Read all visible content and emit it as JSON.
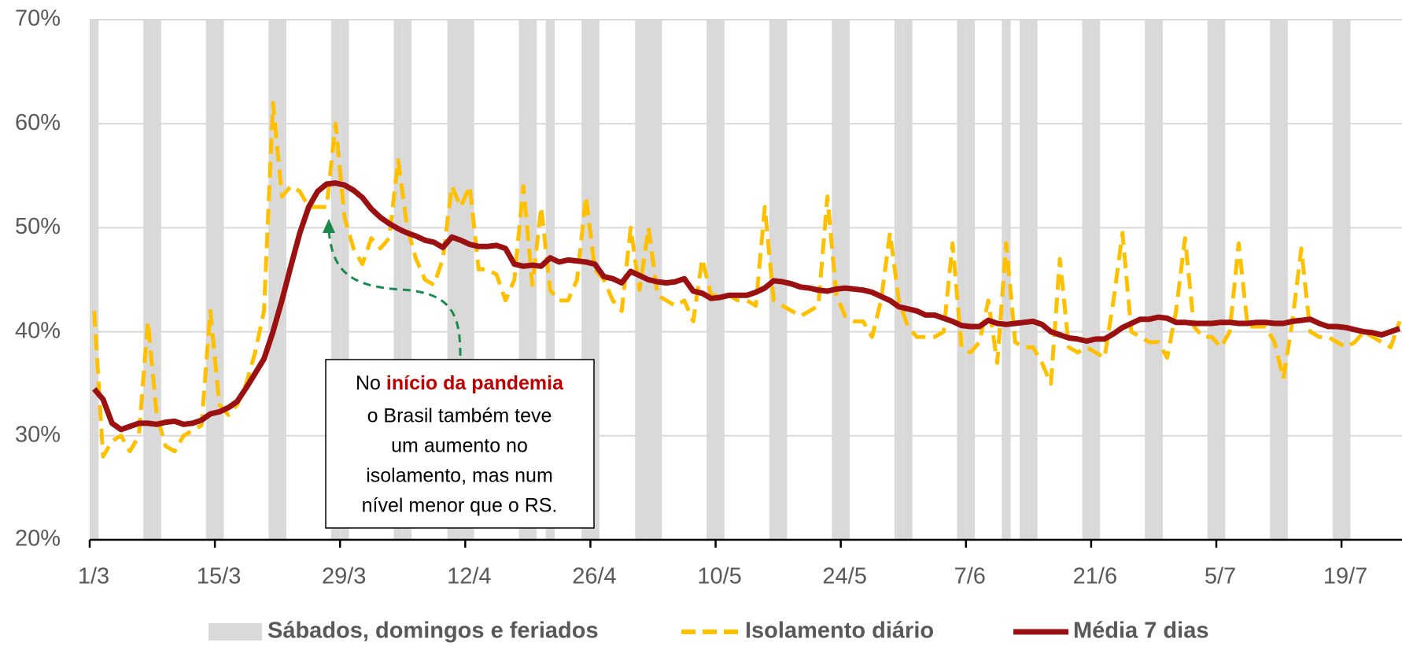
{
  "chart_data": {
    "type": "line",
    "categories": [
      "1/3",
      null,
      null,
      null,
      null,
      null,
      null,
      null,
      null,
      null,
      null,
      null,
      null,
      null,
      "15/3",
      null,
      null,
      null,
      null,
      null,
      null,
      null,
      null,
      null,
      null,
      null,
      null,
      null,
      "29/3",
      null,
      null,
      null,
      null,
      null,
      null,
      null,
      null,
      null,
      null,
      null,
      null,
      null,
      "12/4",
      null,
      null,
      null,
      null,
      null,
      null,
      null,
      null,
      null,
      null,
      null,
      null,
      null,
      "26/4",
      null,
      null,
      null,
      null,
      null,
      null,
      null,
      null,
      null,
      null,
      null,
      null,
      null,
      "10/5",
      null,
      null,
      null,
      null,
      null,
      null,
      null,
      null,
      null,
      null,
      null,
      null,
      null,
      "24/5",
      null,
      null,
      null,
      null,
      null,
      null,
      null,
      null,
      null,
      null,
      null,
      null,
      null,
      "7/6",
      null,
      null,
      null,
      null,
      null,
      null,
      null,
      null,
      null,
      null,
      null,
      null,
      null,
      "21/6",
      null,
      null,
      null,
      null,
      null,
      null,
      null,
      null,
      null,
      null,
      null,
      null,
      null,
      "5/7",
      null,
      null,
      null,
      null,
      null,
      null,
      null,
      null,
      null,
      null,
      null,
      null,
      null,
      "19/7",
      null,
      null,
      null,
      null,
      null,
      null
    ],
    "series": [
      {
        "name": "Sábados, domingos e feriados",
        "type": "bar",
        "color": "#d9d9d9",
        "values": [
          70,
          null,
          null,
          null,
          null,
          null,
          70,
          70,
          null,
          null,
          null,
          null,
          null,
          70,
          70,
          null,
          null,
          null,
          null,
          null,
          70,
          70,
          null,
          null,
          null,
          null,
          null,
          70,
          70,
          null,
          null,
          null,
          null,
          null,
          70,
          70,
          null,
          null,
          null,
          null,
          70,
          70,
          70,
          null,
          null,
          null,
          null,
          null,
          70,
          70,
          null,
          70,
          null,
          null,
          null,
          70,
          70,
          null,
          null,
          null,
          null,
          70,
          70,
          70,
          null,
          null,
          null,
          null,
          null,
          70,
          70,
          null,
          null,
          null,
          null,
          null,
          70,
          70,
          null,
          null,
          null,
          null,
          null,
          70,
          70,
          null,
          null,
          null,
          null,
          null,
          70,
          70,
          null,
          null,
          null,
          null,
          null,
          70,
          70,
          null,
          null,
          null,
          70,
          null,
          70,
          70,
          null,
          null,
          null,
          null,
          null,
          70,
          70,
          null,
          null,
          null,
          null,
          null,
          70,
          70,
          null,
          null,
          null,
          null,
          null,
          70,
          70,
          null,
          null,
          null,
          null,
          null,
          70,
          70,
          null,
          null,
          null,
          null,
          null,
          70,
          70,
          null,
          null,
          null,
          null,
          null,
          null
        ]
      },
      {
        "name": "Isolamento diário",
        "type": "line",
        "color": "#ffc000",
        "dashed": true,
        "values": [
          42,
          28,
          29.5,
          30,
          28.5,
          30,
          41,
          32,
          29,
          28.5,
          30,
          30.5,
          31,
          42,
          33,
          32,
          33,
          35,
          38,
          42,
          62,
          53,
          54,
          53.5,
          52,
          52,
          52,
          60,
          51,
          48,
          46.5,
          49,
          48,
          49,
          56.5,
          50,
          47,
          45,
          44.5,
          47,
          54,
          52,
          54,
          46,
          46,
          45.5,
          43,
          45,
          54,
          44.5,
          52,
          44,
          43,
          43,
          45,
          53,
          46,
          45,
          43,
          42,
          50,
          44,
          50,
          43.5,
          43,
          42.5,
          43,
          41,
          47,
          43.5,
          43.5,
          43.5,
          43,
          43,
          42.5,
          52,
          43,
          42.5,
          42,
          41.5,
          42,
          42.5,
          53,
          43.5,
          41.5,
          41,
          41,
          39.5,
          43,
          49.5,
          43,
          40.5,
          39.5,
          39.5,
          39.5,
          40,
          48.5,
          38.5,
          38,
          39,
          43,
          37,
          48.5,
          39,
          38.5,
          38.5,
          37,
          35,
          47,
          38.5,
          38,
          38.5,
          38,
          37.5,
          43,
          49.5,
          40,
          39.5,
          39,
          39,
          37.5,
          42,
          49,
          40.5,
          39.5,
          39.5,
          38.5,
          40,
          48.5,
          40.5,
          40.5,
          40.5,
          39,
          35.5,
          41,
          48,
          40,
          39.5,
          39.5,
          39,
          38.5,
          39,
          40,
          39.5,
          39,
          38.5,
          41
        ]
      },
      {
        "name": "Média 7 dias",
        "type": "line",
        "color": "#9b1010",
        "values": [
          34.5,
          33.5,
          31.2,
          30.6,
          30.9,
          31.2,
          31.2,
          31.1,
          31.3,
          31.4,
          31.1,
          31.2,
          31.5,
          32.1,
          32.3,
          32.7,
          33.3,
          34.6,
          36,
          37.4,
          40,
          43,
          46.3,
          49.5,
          52,
          53.5,
          54.2,
          54.3,
          54.1,
          53.6,
          52.9,
          51.8,
          51,
          50.4,
          49.9,
          49.5,
          49.2,
          48.8,
          48.6,
          48.1,
          49.1,
          48.8,
          48.4,
          48.2,
          48.2,
          48.3,
          48,
          46.5,
          46.3,
          46.4,
          46.3,
          47.1,
          46.7,
          46.9,
          46.8,
          46.7,
          46.5,
          45.3,
          45.1,
          44.7,
          45.8,
          45.4,
          45,
          44.8,
          44.7,
          44.8,
          45.1,
          43.9,
          43.7,
          43.2,
          43.3,
          43.5,
          43.5,
          43.5,
          43.8,
          44.2,
          44.9,
          44.8,
          44.6,
          44.3,
          44.2,
          44,
          43.9,
          44.1,
          44.2,
          44.1,
          44,
          43.8,
          43.4,
          43,
          42.4,
          42.2,
          42,
          41.6,
          41.6,
          41.3,
          41,
          40.6,
          40.5,
          40.5,
          41.1,
          40.8,
          40.7,
          40.8,
          40.9,
          41,
          40.7,
          40,
          39.7,
          39.4,
          39.3,
          39.1,
          39.3,
          39.3,
          39.8,
          40.4,
          40.8,
          41.2,
          41.2,
          41.4,
          41.3,
          40.9,
          40.9,
          40.8,
          40.8,
          40.8,
          40.9,
          40.9,
          40.8,
          40.8,
          40.9,
          40.9,
          40.8,
          40.8,
          41,
          41.1,
          41.2,
          40.8,
          40.5,
          40.5,
          40.4,
          40.2,
          40,
          39.9,
          39.7,
          40,
          40.3
        ]
      }
    ],
    "ylim": [
      20,
      70
    ],
    "yticks": [
      {
        "value": 20,
        "label": "20%"
      },
      {
        "value": 30,
        "label": "30%"
      },
      {
        "value": 40,
        "label": "40%"
      },
      {
        "value": 50,
        "label": "50%"
      },
      {
        "value": 60,
        "label": "60%"
      },
      {
        "value": 70,
        "label": "70%"
      }
    ],
    "grid": true,
    "legend": "bottom",
    "annotation": {
      "lead": "No",
      "highlight": "início da pandemia",
      "highlight_color": "#c00000",
      "lines": [
        "o Brasil também teve",
        "um aumento no",
        "isolamento, mas num",
        "nível menor que o RS."
      ]
    }
  }
}
